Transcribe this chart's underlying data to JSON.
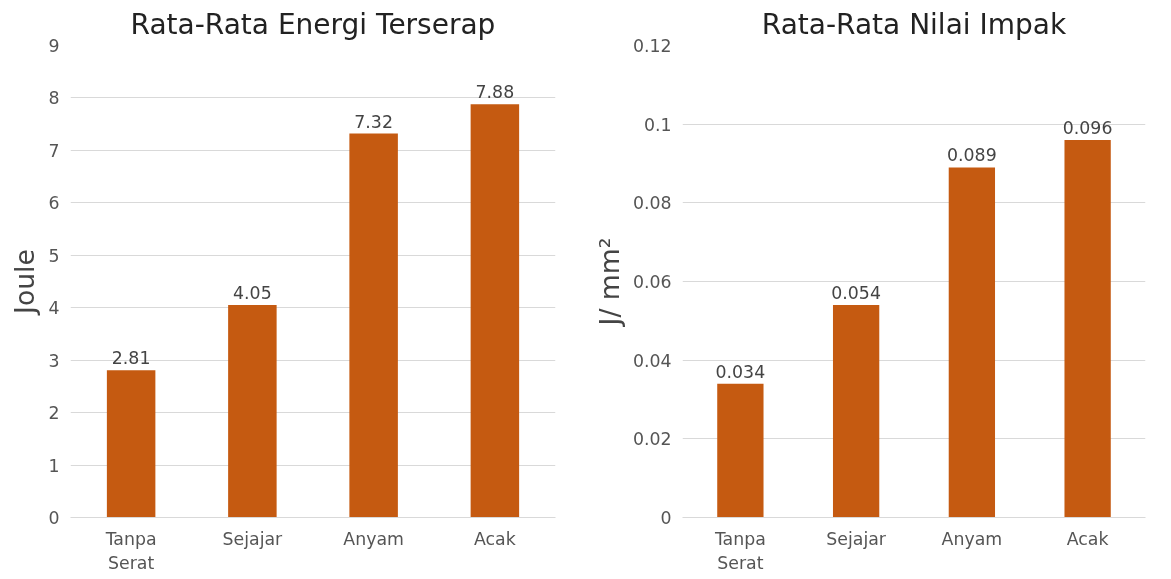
{
  "chart_data": [
    {
      "type": "bar",
      "title": "Rata-Rata Energi Terserap",
      "ylabel": "Joule",
      "categories": [
        "Tanpa Serat",
        "Sejajar",
        "Anyam",
        "Acak"
      ],
      "values": [
        2.81,
        4.05,
        7.32,
        7.88
      ],
      "color": "#c55a11",
      "ylim": [
        0,
        9
      ],
      "yticks": [
        0,
        1,
        2,
        3,
        4,
        5,
        6,
        7,
        8,
        9
      ],
      "grid": "y",
      "data_labels": true
    },
    {
      "type": "bar",
      "title": "Rata-Rata Nilai Impak",
      "ylabel": "J/ mm²",
      "categories": [
        "Tanpa Serat",
        "Sejajar",
        "Anyam",
        "Acak"
      ],
      "values": [
        0.034,
        0.054,
        0.089,
        0.096
      ],
      "color": "#c55a11",
      "ylim": [
        0,
        0.12
      ],
      "yticks": [
        0,
        0.02,
        0.04,
        0.06,
        0.08,
        0.1,
        0.12
      ],
      "grid": "y",
      "data_labels": true
    }
  ]
}
